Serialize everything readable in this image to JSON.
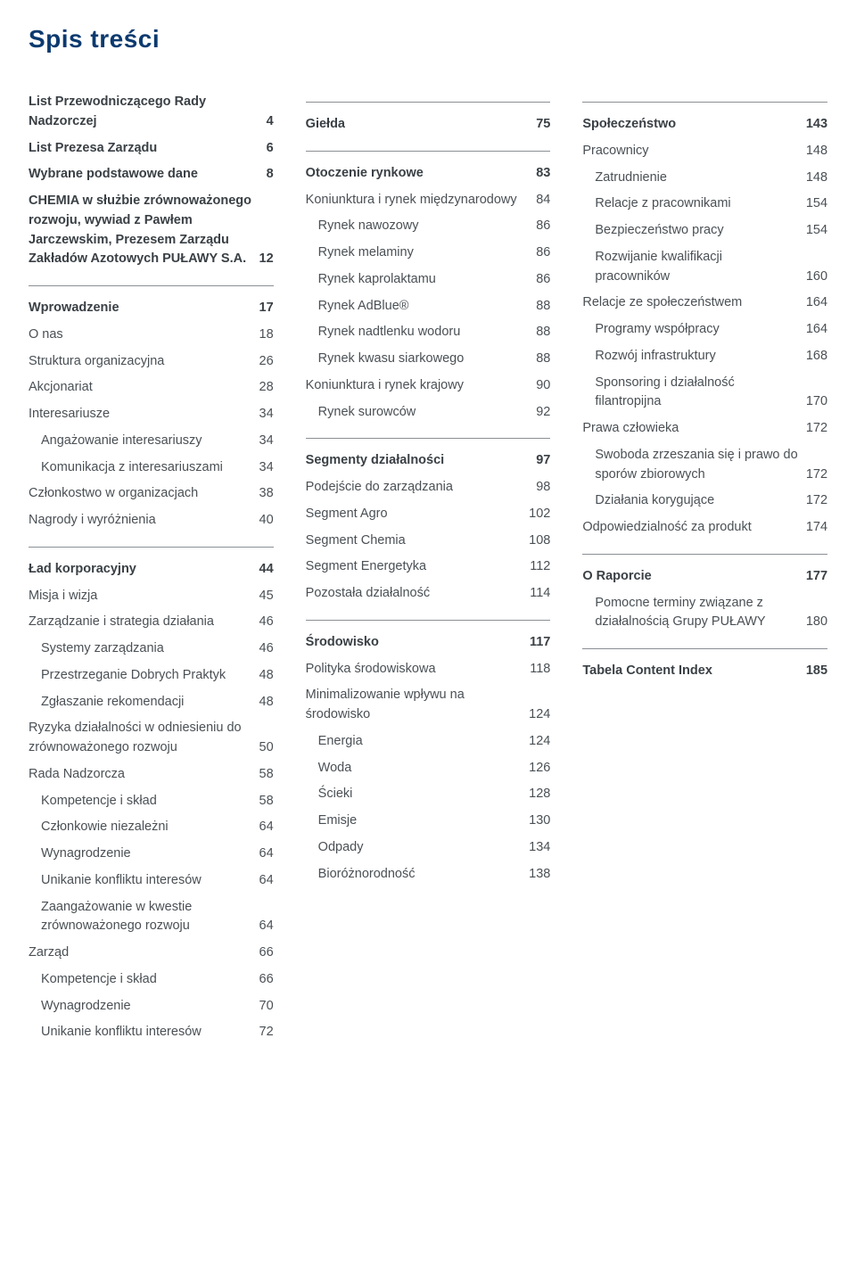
{
  "title": "Spis treści",
  "colors": {
    "title_color": "#0b3a6f",
    "text_color": "#4a5055",
    "bold_color": "#3a4045",
    "separator_color": "#8a8f94",
    "background": "#ffffff"
  },
  "typography": {
    "title_fontsize": 28,
    "body_fontsize": 14.5
  },
  "columns": [
    [
      {
        "type": "row",
        "bold": true,
        "indent": 0,
        "label": "List Przewodniczącego Rady Nadzorczej",
        "page": "4"
      },
      {
        "type": "row",
        "bold": true,
        "indent": 0,
        "label": "List Prezesa Zarządu",
        "page": "6"
      },
      {
        "type": "row",
        "bold": true,
        "indent": 0,
        "label": "Wybrane podstawowe dane",
        "page": "8"
      },
      {
        "type": "row",
        "bold": true,
        "indent": 0,
        "label": "CHEMIA w służbie zrównoważonego rozwoju, wywiad z Pawłem Jarczewskim, Prezesem Zarządu  Zakładów Azotowych PUŁAWY S.A.",
        "page": "12"
      },
      {
        "type": "sep"
      },
      {
        "type": "row",
        "bold": true,
        "indent": 0,
        "label": "Wprowadzenie",
        "page": "17"
      },
      {
        "type": "row",
        "bold": false,
        "indent": 0,
        "label": "O nas",
        "page": "18"
      },
      {
        "type": "row",
        "bold": false,
        "indent": 0,
        "label": "Struktura organizacyjna",
        "page": "26"
      },
      {
        "type": "row",
        "bold": false,
        "indent": 0,
        "label": "Akcjonariat",
        "page": "28"
      },
      {
        "type": "row",
        "bold": false,
        "indent": 0,
        "label": "Interesariusze",
        "page": "34"
      },
      {
        "type": "row",
        "bold": false,
        "indent": 1,
        "label": "Angażowanie interesariuszy",
        "page": "34"
      },
      {
        "type": "row",
        "bold": false,
        "indent": 1,
        "label": "Komunikacja z interesariuszami",
        "page": "34"
      },
      {
        "type": "row",
        "bold": false,
        "indent": 0,
        "label": "Członkostwo w organizacjach",
        "page": "38"
      },
      {
        "type": "row",
        "bold": false,
        "indent": 0,
        "label": "Nagrody i wyróżnienia",
        "page": "40"
      },
      {
        "type": "sep"
      },
      {
        "type": "row",
        "bold": true,
        "indent": 0,
        "label": "Ład korporacyjny",
        "page": "44"
      },
      {
        "type": "row",
        "bold": false,
        "indent": 0,
        "label": "Misja i wizja",
        "page": "45"
      },
      {
        "type": "row",
        "bold": false,
        "indent": 0,
        "label": "Zarządzanie i strategia działania",
        "page": "46"
      },
      {
        "type": "row",
        "bold": false,
        "indent": 1,
        "label": "Systemy zarządzania",
        "page": "46"
      },
      {
        "type": "row",
        "bold": false,
        "indent": 1,
        "label": "Przestrzeganie Dobrych Praktyk",
        "page": "48"
      },
      {
        "type": "row",
        "bold": false,
        "indent": 1,
        "label": "Zgłaszanie rekomendacji",
        "page": "48"
      },
      {
        "type": "row",
        "bold": false,
        "indent": 0,
        "label": "Ryzyka działalności w odniesieniu do zrównoważonego rozwoju",
        "page": "50"
      },
      {
        "type": "row",
        "bold": false,
        "indent": 0,
        "label": "Rada Nadzorcza",
        "page": "58"
      },
      {
        "type": "row",
        "bold": false,
        "indent": 1,
        "label": "Kompetencje i skład",
        "page": "58"
      },
      {
        "type": "row",
        "bold": false,
        "indent": 1,
        "label": "Członkowie niezależni",
        "page": "64"
      },
      {
        "type": "row",
        "bold": false,
        "indent": 1,
        "label": "Wynagrodzenie",
        "page": "64"
      },
      {
        "type": "row",
        "bold": false,
        "indent": 1,
        "label": "Unikanie konfliktu interesów",
        "page": "64"
      },
      {
        "type": "row",
        "bold": false,
        "indent": 1,
        "label": "Zaangażowanie w kwestie zrównoważonego rozwoju",
        "page": "64"
      },
      {
        "type": "row",
        "bold": false,
        "indent": 0,
        "label": "Zarząd",
        "page": "66"
      },
      {
        "type": "row",
        "bold": false,
        "indent": 1,
        "label": "Kompetencje i skład",
        "page": "66"
      },
      {
        "type": "row",
        "bold": false,
        "indent": 1,
        "label": "Wynagrodzenie",
        "page": "70"
      },
      {
        "type": "row",
        "bold": false,
        "indent": 1,
        "label": "Unikanie konfliktu interesów",
        "page": "72"
      }
    ],
    [
      {
        "type": "sep"
      },
      {
        "type": "row",
        "bold": true,
        "indent": 0,
        "label": "Giełda",
        "page": "75"
      },
      {
        "type": "sep"
      },
      {
        "type": "row",
        "bold": true,
        "indent": 0,
        "label": "Otoczenie rynkowe",
        "page": "83"
      },
      {
        "type": "row",
        "bold": false,
        "indent": 0,
        "label": "Koniunktura i rynek międzynarodowy",
        "page": "84"
      },
      {
        "type": "row",
        "bold": false,
        "indent": 1,
        "label": "Rynek nawozowy",
        "page": "86"
      },
      {
        "type": "row",
        "bold": false,
        "indent": 1,
        "label": "Rynek melaminy",
        "page": "86"
      },
      {
        "type": "row",
        "bold": false,
        "indent": 1,
        "label": "Rynek kaprolaktamu",
        "page": "86"
      },
      {
        "type": "row",
        "bold": false,
        "indent": 1,
        "label": "Rynek AdBlue®",
        "page": "88"
      },
      {
        "type": "row",
        "bold": false,
        "indent": 1,
        "label": "Rynek nadtlenku wodoru",
        "page": "88"
      },
      {
        "type": "row",
        "bold": false,
        "indent": 1,
        "label": "Rynek kwasu siarkowego",
        "page": "88"
      },
      {
        "type": "row",
        "bold": false,
        "indent": 0,
        "label": "Koniunktura i rynek krajowy",
        "page": "90"
      },
      {
        "type": "row",
        "bold": false,
        "indent": 1,
        "label": "Rynek surowców",
        "page": "92"
      },
      {
        "type": "sep"
      },
      {
        "type": "row",
        "bold": true,
        "indent": 0,
        "label": "Segmenty działalności",
        "page": "97"
      },
      {
        "type": "row",
        "bold": false,
        "indent": 0,
        "label": "Podejście do zarządzania",
        "page": "98"
      },
      {
        "type": "row",
        "bold": false,
        "indent": 0,
        "label": "Segment Agro",
        "page": "102"
      },
      {
        "type": "row",
        "bold": false,
        "indent": 0,
        "label": "Segment Chemia",
        "page": "108"
      },
      {
        "type": "row",
        "bold": false,
        "indent": 0,
        "label": "Segment Energetyka",
        "page": "112"
      },
      {
        "type": "row",
        "bold": false,
        "indent": 0,
        "label": "Pozostała działalność",
        "page": "114"
      },
      {
        "type": "sep"
      },
      {
        "type": "row",
        "bold": true,
        "indent": 0,
        "label": "Środowisko",
        "page": "117"
      },
      {
        "type": "row",
        "bold": false,
        "indent": 0,
        "label": "Polityka środowiskowa",
        "page": "118"
      },
      {
        "type": "row",
        "bold": false,
        "indent": 0,
        "label": "Minimalizowanie wpływu na środowisko",
        "page": "124"
      },
      {
        "type": "row",
        "bold": false,
        "indent": 1,
        "label": "Energia",
        "page": "124"
      },
      {
        "type": "row",
        "bold": false,
        "indent": 1,
        "label": "Woda",
        "page": "126"
      },
      {
        "type": "row",
        "bold": false,
        "indent": 1,
        "label": "Ścieki",
        "page": "128"
      },
      {
        "type": "row",
        "bold": false,
        "indent": 1,
        "label": "Emisje",
        "page": "130"
      },
      {
        "type": "row",
        "bold": false,
        "indent": 1,
        "label": "Odpady",
        "page": "134"
      },
      {
        "type": "row",
        "bold": false,
        "indent": 1,
        "label": "Bioróżnorodność",
        "page": "138"
      }
    ],
    [
      {
        "type": "sep"
      },
      {
        "type": "row",
        "bold": true,
        "indent": 0,
        "label": "Społeczeństwo",
        "page": "143"
      },
      {
        "type": "row",
        "bold": false,
        "indent": 0,
        "label": "Pracownicy",
        "page": "148"
      },
      {
        "type": "row",
        "bold": false,
        "indent": 1,
        "label": "Zatrudnienie",
        "page": "148"
      },
      {
        "type": "row",
        "bold": false,
        "indent": 1,
        "label": "Relacje z pracownikami",
        "page": "154"
      },
      {
        "type": "row",
        "bold": false,
        "indent": 1,
        "label": "Bezpieczeństwo pracy",
        "page": "154"
      },
      {
        "type": "row",
        "bold": false,
        "indent": 1,
        "label": "Rozwijanie kwalifikacji pracowników",
        "page": "160"
      },
      {
        "type": "row",
        "bold": false,
        "indent": 0,
        "label": "Relacje ze społeczeństwem",
        "page": "164"
      },
      {
        "type": "row",
        "bold": false,
        "indent": 1,
        "label": "Programy współpracy",
        "page": "164"
      },
      {
        "type": "row",
        "bold": false,
        "indent": 1,
        "label": "Rozwój infrastruktury",
        "page": "168"
      },
      {
        "type": "row",
        "bold": false,
        "indent": 1,
        "label": "Sponsoring i działalność filantropijna",
        "page": "170"
      },
      {
        "type": "row",
        "bold": false,
        "indent": 0,
        "label": "Prawa człowieka",
        "page": "172"
      },
      {
        "type": "row",
        "bold": false,
        "indent": 1,
        "label": "Swoboda zrzeszania się i prawo do sporów zbiorowych",
        "page": "172"
      },
      {
        "type": "row",
        "bold": false,
        "indent": 1,
        "label": "Działania korygujące",
        "page": "172"
      },
      {
        "type": "row",
        "bold": false,
        "indent": 0,
        "label": "Odpowiedzialność za produkt",
        "page": "174"
      },
      {
        "type": "sep"
      },
      {
        "type": "row",
        "bold": true,
        "indent": 0,
        "label": "O Raporcie",
        "page": "177"
      },
      {
        "type": "row",
        "bold": false,
        "indent": 1,
        "label": "Pomocne terminy związane z działalnością Grupy PUŁAWY",
        "page": "180"
      },
      {
        "type": "sep"
      },
      {
        "type": "row",
        "bold": true,
        "indent": 0,
        "label": "Tabela Content Index",
        "page": "185"
      }
    ]
  ]
}
